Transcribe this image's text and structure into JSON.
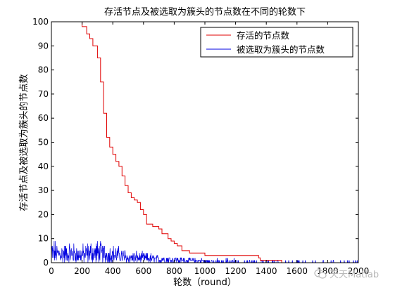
{
  "chart_data": {
    "type": "line",
    "title": "存活节点及被选取为簇头的节点数在不同的轮数下",
    "xlabel": "轮数（round）",
    "ylabel": "存活节点及被选取为簇头的节点数",
    "xlim": [
      0,
      2000
    ],
    "ylim": [
      0,
      100
    ],
    "xticks": [
      0,
      200,
      400,
      600,
      800,
      1000,
      1200,
      1400,
      1600,
      1800,
      2000
    ],
    "yticks": [
      0,
      10,
      20,
      30,
      40,
      50,
      60,
      70,
      80,
      90,
      100
    ],
    "grid": false,
    "legend_position": "top-right",
    "series": [
      {
        "name": "存活的节点数",
        "color": "#e00000",
        "x": [
          0,
          190,
          200,
          230,
          250,
          270,
          300,
          320,
          340,
          360,
          380,
          400,
          420,
          440,
          460,
          480,
          500,
          520,
          540,
          560,
          580,
          600,
          620,
          640,
          660,
          700,
          720,
          760,
          780,
          800,
          820,
          850,
          900,
          1000,
          1150,
          1200,
          1350,
          1360,
          1450,
          1480,
          1500,
          1600,
          1700,
          2000
        ],
        "y": [
          100,
          100,
          98,
          95,
          93,
          90,
          85,
          75,
          62,
          52,
          48,
          45,
          42,
          40,
          36,
          32,
          29,
          27,
          26,
          25,
          22,
          20,
          16,
          16,
          15,
          14,
          12,
          10,
          9,
          8,
          7,
          5,
          4,
          3,
          3,
          3,
          2,
          1,
          1,
          1,
          0,
          0,
          0,
          0
        ]
      },
      {
        "name": "被选取为簇头的节点数",
        "color": "#0000e0",
        "envelope": {
          "x": [
            0,
            100,
            200,
            300,
            400,
            500,
            600,
            700,
            800,
            1000,
            1200,
            1400,
            1600,
            1800,
            2000
          ],
          "y_max": [
            11,
            10,
            9,
            11,
            9,
            6,
            5,
            4,
            3,
            2,
            2,
            1,
            1,
            1,
            1
          ]
        }
      }
    ]
  },
  "watermark": {
    "text": "天天Matlab"
  }
}
